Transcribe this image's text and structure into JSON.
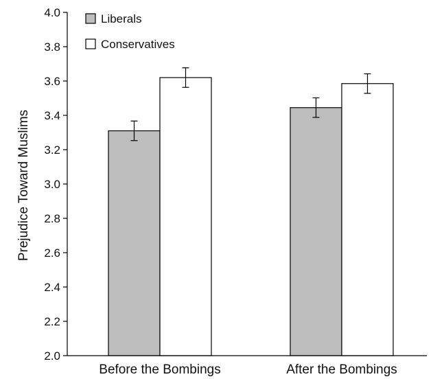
{
  "chart_data": {
    "type": "bar",
    "categories": [
      "Before the Bombings",
      "After the Bombings"
    ],
    "series": [
      {
        "name": "Liberals",
        "color": "#bdbdbd",
        "values": [
          3.31,
          3.445
        ],
        "error": [
          0.057,
          0.057
        ]
      },
      {
        "name": "Conservatives",
        "color": "#ffffff",
        "values": [
          3.62,
          3.585
        ],
        "error": [
          0.057,
          0.057
        ]
      }
    ],
    "title": "",
    "xlabel": "",
    "ylabel": "Prejudice Toward Muslims",
    "ylim": [
      2.0,
      4.0
    ],
    "yticks": [
      "2.0",
      "2.2",
      "2.4",
      "2.6",
      "2.8",
      "3.0",
      "3.2",
      "3.4",
      "3.6",
      "3.8",
      "4.0"
    ],
    "grid": false,
    "legend_position": "top-left"
  }
}
